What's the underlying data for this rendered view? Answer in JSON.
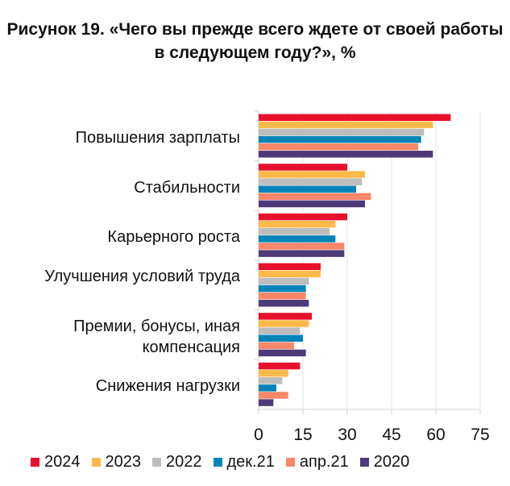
{
  "title": "Рисунок 19. «Чего вы прежде всего ждете от своей работы в следующем году?», %",
  "chart_data": {
    "type": "bar",
    "orientation": "horizontal",
    "title": "Рисунок 19. «Чего вы прежде всего ждете от своей работы в следующем году?», %",
    "categories": [
      "Повышения зарплаты",
      "Стабильности",
      "Карьерного роста",
      "Улучшения условий труда",
      "Премии, бонусы, иная компенсация",
      "Снижения нагрузки"
    ],
    "series": [
      {
        "name": "2024",
        "color": "#e8112d",
        "values": [
          65,
          30,
          30,
          21,
          18,
          14
        ]
      },
      {
        "name": "2023",
        "color": "#fdb94a",
        "values": [
          59,
          36,
          26,
          21,
          17,
          10
        ]
      },
      {
        "name": "2022",
        "color": "#bdbdbd",
        "values": [
          56,
          35,
          24,
          17,
          14,
          8
        ]
      },
      {
        "name": "дек.21",
        "color": "#0084b8",
        "values": [
          55,
          33,
          26,
          16,
          15,
          6
        ]
      },
      {
        "name": "апр.21",
        "color": "#f9876a",
        "values": [
          54,
          38,
          29,
          16,
          12,
          10
        ]
      },
      {
        "name": "2020",
        "color": "#4e3a78",
        "values": [
          59,
          36,
          29,
          17,
          16,
          5
        ]
      }
    ],
    "xlim": [
      0,
      75
    ],
    "xticks": [
      "0",
      "15",
      "30",
      "45",
      "60",
      "75"
    ],
    "grid": true,
    "legend": "bottom"
  }
}
